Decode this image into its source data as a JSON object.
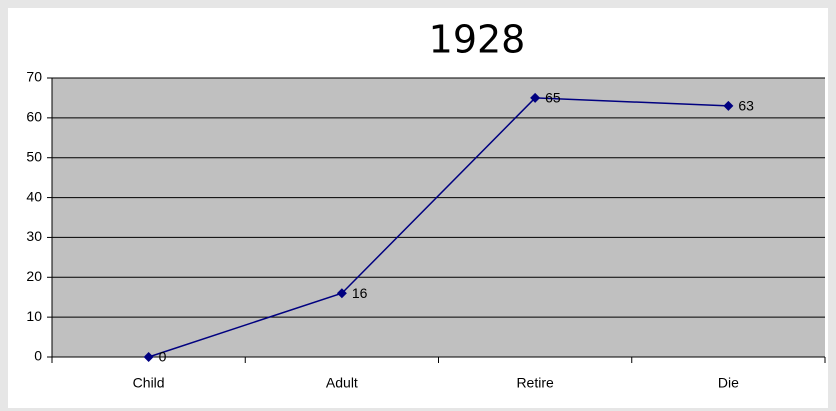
{
  "chart_data": {
    "type": "line",
    "title": "1928",
    "categories": [
      "Child",
      "Adult",
      "Retire",
      "Die"
    ],
    "values": [
      0,
      16,
      65,
      63
    ],
    "color": "#000080",
    "ylim": [
      0,
      70
    ],
    "yticks": [
      0,
      10,
      20,
      30,
      40,
      50,
      60,
      70
    ],
    "grid": true
  }
}
